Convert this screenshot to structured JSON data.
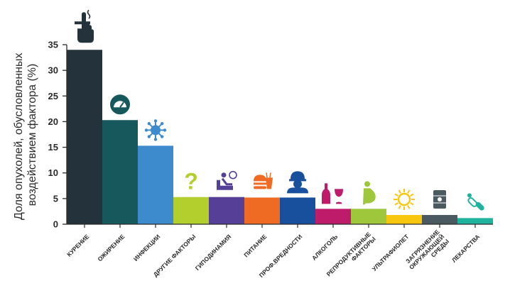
{
  "chart_data": {
    "type": "bar",
    "ylabel": "Доля опухолей, обусловленных воздействием фактора (%)",
    "ylabel_lines": [
      "Доля опухолей, обусловленных",
      "воздействием фактора (%)"
    ],
    "ylim": [
      0,
      35
    ],
    "yticks": [
      0,
      5,
      10,
      15,
      20,
      25,
      30,
      35
    ],
    "grid": false,
    "categories": [
      "КУРЕНИЕ",
      "ОЖИРЕНИЕ",
      "ИНФЕКЦИИ",
      "ДРУГИЕ ФАКТОРЫ",
      "ГИПОДИНАМИЯ",
      "ПИТАНИЕ",
      "ПРОФ.ВРЕДНОСТИ",
      "АЛКОГОЛЬ",
      "РЕПРОДУКТИВНЫЕ ФАКТОРЫ",
      "УЛЬТРАФИОЛЕТ",
      "ЗАГРЯЗНЕНИЕ ОКРУЖАЮЩЕЙ СРЕДЫ",
      "ЛЕКАРСТВА"
    ],
    "category_lines": [
      [
        "КУРЕНИЕ"
      ],
      [
        "ОЖИРЕНИЕ"
      ],
      [
        "ИНФЕКЦИИ"
      ],
      [
        "ДРУГИЕ ФАКТОРЫ"
      ],
      [
        "ГИПОДИНАМИЯ"
      ],
      [
        "ПИТАНИЕ"
      ],
      [
        "ПРОФ.ВРЕДНОСТИ"
      ],
      [
        "АЛКОГОЛЬ"
      ],
      [
        "РЕПРОДУКТИВНЫЕ",
        "ФАКТОРЫ"
      ],
      [
        "УЛЬТРАФИОЛЕТ"
      ],
      [
        "ЗАГРЯЗНЕНИЕ",
        "ОКРУЖАЮЩЕЙ",
        "СРЕДЫ"
      ],
      [
        "ЛЕКАРСТВА"
      ]
    ],
    "values": [
      34,
      20.3,
      15.3,
      5.3,
      5.3,
      5.2,
      5.2,
      3,
      3,
      1.8,
      1.8,
      1.2
    ],
    "colors": [
      "#24323c",
      "#17585c",
      "#3d8bcc",
      "#b3cf2e",
      "#563f97",
      "#ef6a22",
      "#19509e",
      "#bf1b6b",
      "#9fc73b",
      "#f8c50f",
      "#4b5a61",
      "#1fb39e"
    ],
    "icons": [
      "cigarette-hand-icon",
      "scale-icon",
      "virus-icon",
      "question-icon",
      "couch-icon",
      "food-icon",
      "worker-icon",
      "alcohol-icon",
      "pregnancy-icon",
      "sun-icon",
      "barrel-icon",
      "pills-icon"
    ]
  }
}
